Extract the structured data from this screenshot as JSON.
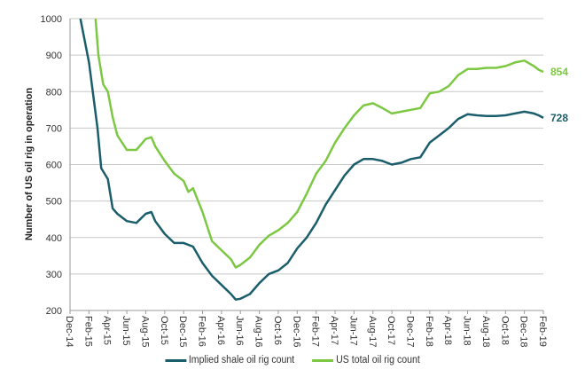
{
  "chart_data": {
    "type": "line",
    "title": "",
    "xlabel": "",
    "ylabel": "Number of US oil rig in operation",
    "ylim": [
      200,
      1000
    ],
    "yticks": [
      "200",
      "300",
      "400",
      "500",
      "600",
      "700",
      "800",
      "900",
      "1000"
    ],
    "x_unit": "months since Dec-14",
    "xlim": [
      0,
      50
    ],
    "xtick_labels": [
      "Dec-14",
      "Feb-15",
      "Apr-15",
      "Jun-15",
      "Aug-15",
      "Oct-15",
      "Dec-15",
      "Feb-16",
      "Apr-16",
      "Jun-16",
      "Aug-16",
      "Oct-16",
      "Dec-16",
      "Feb-17",
      "Apr-17",
      "Jun-17",
      "Aug-17",
      "Oct-17",
      "Dec-17",
      "Feb-18",
      "Apr-18",
      "Jun-18",
      "Aug-18",
      "Oct-18",
      "Dec-18",
      "Feb-19"
    ],
    "grid": true,
    "legend": "bottom",
    "series": [
      {
        "name": "Implied shale oil rig count",
        "color": "#1b5e6b",
        "end_label": "728",
        "x": [
          1.1,
          2,
          2.9,
          3.3,
          4,
          4.5,
          5,
          6,
          7,
          8,
          8.6,
          9,
          10,
          11,
          12,
          13,
          14,
          15,
          16,
          17,
          17.5,
          18,
          19,
          20,
          21,
          22,
          23,
          24,
          25,
          26,
          27,
          28,
          29,
          30,
          31,
          32,
          33,
          34,
          35,
          36,
          37,
          38,
          39,
          40,
          41,
          42,
          43,
          44,
          45,
          46,
          47,
          48,
          49,
          49.5,
          50
        ],
        "y": [
          1000,
          880,
          700,
          590,
          560,
          480,
          465,
          445,
          440,
          465,
          470,
          445,
          410,
          385,
          385,
          375,
          330,
          295,
          270,
          245,
          230,
          232,
          245,
          275,
          300,
          310,
          330,
          370,
          400,
          440,
          490,
          530,
          570,
          600,
          615,
          615,
          610,
          600,
          605,
          615,
          620,
          660,
          680,
          700,
          725,
          738,
          735,
          733,
          733,
          735,
          740,
          745,
          740,
          735,
          728
        ]
      },
      {
        "name": "US total oil rig count",
        "color": "#7dc843",
        "end_label": "854",
        "x": [
          2.7,
          3,
          3.5,
          4,
          4.5,
          5,
          6,
          7,
          8,
          8.6,
          9,
          10,
          11,
          12,
          12.5,
          13,
          14,
          15,
          16,
          17,
          17.5,
          18,
          19,
          20,
          21,
          22,
          23,
          24,
          25,
          26,
          27,
          28,
          29,
          30,
          31,
          32,
          33,
          34,
          35,
          36,
          37,
          38,
          39,
          40,
          41,
          42,
          43,
          44,
          45,
          46,
          47,
          48,
          49,
          49.5,
          50
        ],
        "y": [
          1000,
          900,
          820,
          800,
          730,
          680,
          640,
          640,
          670,
          675,
          650,
          610,
          575,
          555,
          525,
          535,
          470,
          390,
          365,
          340,
          318,
          325,
          345,
          380,
          405,
          420,
          440,
          470,
          520,
          575,
          610,
          660,
          700,
          735,
          762,
          768,
          755,
          740,
          745,
          750,
          755,
          795,
          800,
          815,
          845,
          862,
          862,
          865,
          865,
          870,
          880,
          885,
          870,
          860,
          854
        ]
      }
    ]
  }
}
